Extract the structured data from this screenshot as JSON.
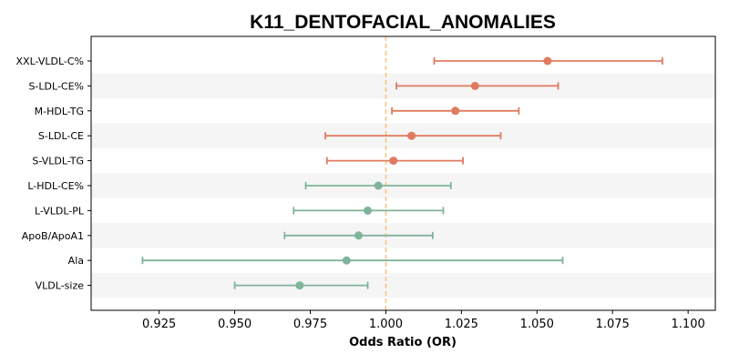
{
  "chart_data": {
    "type": "forest",
    "title": "K11_DENTOFACIAL_ANOMALIES",
    "xlabel": "Odds Ratio (OR)",
    "ylabel": "",
    "xlim": [
      0.9025,
      1.109
    ],
    "xticks": [
      0.925,
      0.95,
      0.975,
      1.0,
      1.025,
      1.05,
      1.075,
      1.1
    ],
    "xtick_labels": [
      "0.925",
      "0.950",
      "0.975",
      "1.000",
      "1.025",
      "1.050",
      "1.075",
      "1.100"
    ],
    "reference_line": 1.0,
    "categories": [
      "XXL-VLDL-C%",
      "S-LDL-CE%",
      "M-HDL-TG",
      "S-LDL-CE",
      "S-VLDL-TG",
      "L-HDL-CE%",
      "L-VLDL-PL",
      "ApoB/ApoA1",
      "Ala",
      "VLDL-size"
    ],
    "or": [
      1.0535,
      1.0295,
      1.023,
      1.0085,
      1.0025,
      0.9975,
      0.994,
      0.991,
      0.987,
      0.9715
    ],
    "ci_low": [
      1.016,
      1.0035,
      1.002,
      0.98,
      0.9805,
      0.9735,
      0.9695,
      0.9665,
      0.9195,
      0.95
    ],
    "ci_high": [
      1.0915,
      1.057,
      1.044,
      1.038,
      1.0255,
      1.0215,
      1.019,
      1.0155,
      1.0585,
      0.994
    ],
    "colors": {
      "positive": "#e07b5f",
      "negative": "#7fb39a",
      "reference": "#f5c77e",
      "band": "#f5f5f5"
    }
  }
}
